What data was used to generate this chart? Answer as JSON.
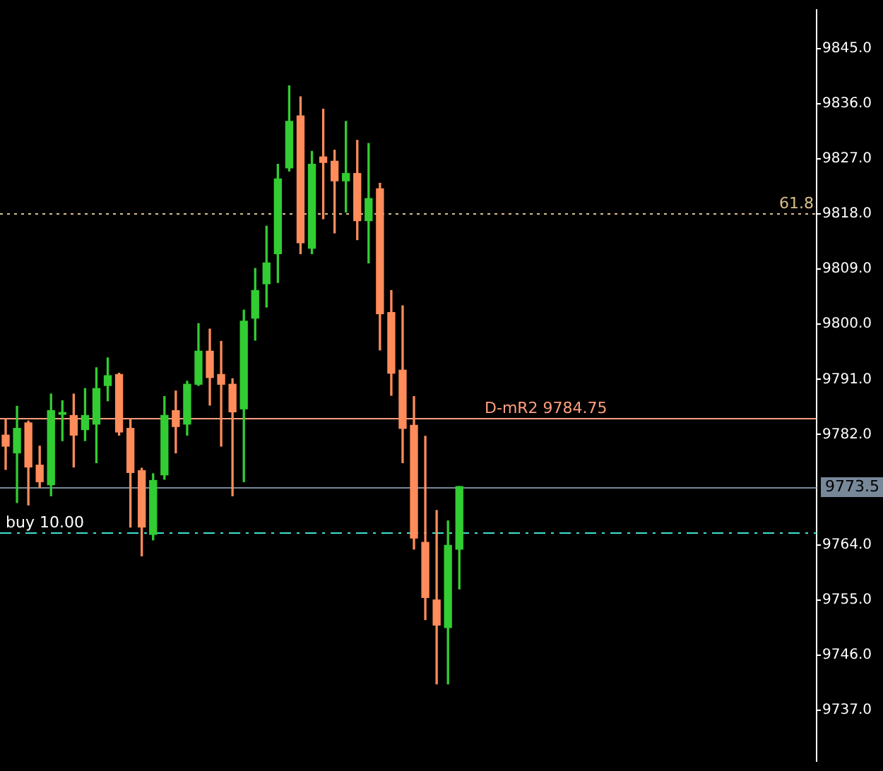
{
  "chart_data": {
    "type": "candlestick",
    "categories": [
      null,
      null,
      null,
      null,
      null,
      null,
      null,
      null,
      null,
      null,
      null,
      null,
      null,
      null,
      null,
      null,
      null,
      null,
      null,
      null,
      null,
      null,
      null,
      null,
      null,
      null,
      null,
      null,
      null,
      null,
      null,
      null,
      null,
      null,
      null,
      null,
      null,
      null,
      null,
      null,
      null,
      null,
      null,
      null,
      null,
      null,
      null,
      null,
      null,
      null,
      null,
      null,
      null,
      null,
      null,
      null,
      null,
      null,
      null,
      null,
      null,
      null,
      null,
      null,
      null,
      null,
      null,
      null,
      null,
      null,
      null,
      null
    ],
    "ohlc": [
      [
        9781.9,
        9784.6,
        9776.3,
        9780.1
      ],
      [
        9779.0,
        9786.6,
        9770.9,
        9783.0
      ],
      [
        9783.9,
        9784.2,
        9770.5,
        9776.7
      ],
      [
        9777.0,
        9780.1,
        9773.4,
        9774.3
      ],
      [
        9773.8,
        9788.6,
        9772.0,
        9785.9
      ],
      [
        9785.3,
        9787.5,
        9781.0,
        9785.6
      ],
      [
        9785.1,
        9788.6,
        9776.7,
        9781.9
      ],
      [
        9782.8,
        9789.5,
        9781.0,
        9785.1
      ],
      [
        9783.7,
        9792.9,
        9777.4,
        9789.5
      ],
      [
        9790.0,
        9794.5,
        9787.5,
        9791.6
      ],
      [
        9791.8,
        9792.0,
        9781.9,
        9782.4
      ],
      [
        9783.0,
        9784.6,
        9766.9,
        9775.8
      ],
      [
        9776.1,
        9776.5,
        9762.2,
        9766.9
      ],
      [
        9765.7,
        9775.6,
        9764.8,
        9774.5
      ],
      [
        9775.4,
        9788.2,
        9774.7,
        9785.1
      ],
      [
        9785.9,
        9789.1,
        9779.0,
        9783.3
      ],
      [
        9783.7,
        9790.7,
        9781.9,
        9790.2
      ],
      [
        9790.2,
        9800.1,
        9790.0,
        9795.6
      ],
      [
        9795.6,
        9799.2,
        9786.8,
        9791.3
      ],
      [
        9791.8,
        9797.2,
        9780.1,
        9790.2
      ],
      [
        9790.2,
        9791.1,
        9772.0,
        9785.7
      ],
      [
        9786.2,
        9802.3,
        9774.3,
        9800.5
      ],
      [
        9801.0,
        9809.1,
        9797.4,
        9805.5
      ],
      [
        9806.6,
        9816.0,
        9802.8,
        9810.0
      ],
      [
        9811.5,
        9826.1,
        9806.8,
        9823.7
      ],
      [
        9825.5,
        9838.9,
        9825.0,
        9833.1
      ],
      [
        9834.0,
        9837.1,
        9811.5,
        9813.3
      ],
      [
        9812.4,
        9828.2,
        9811.5,
        9826.1
      ],
      [
        9827.3,
        9835.1,
        9817.2,
        9826.4
      ],
      [
        9826.6,
        9828.4,
        9814.9,
        9823.4
      ],
      [
        9823.4,
        9833.1,
        9818.3,
        9824.6
      ],
      [
        9824.6,
        9830.0,
        9813.8,
        9816.9
      ],
      [
        9816.9,
        9829.5,
        9810.0,
        9820.5
      ],
      [
        9822.1,
        9823.0,
        9795.8,
        9801.7
      ],
      [
        9801.9,
        9805.5,
        9788.4,
        9792.0
      ],
      [
        9792.5,
        9803.0,
        9777.4,
        9783.0
      ],
      [
        9783.5,
        9788.2,
        9763.3,
        9765.1
      ],
      [
        9764.4,
        9781.7,
        9751.8,
        9755.4
      ],
      [
        9755.0,
        9769.6,
        9741.3,
        9750.9
      ],
      [
        9750.5,
        9767.9,
        9741.3,
        9763.9
      ],
      [
        9763.3,
        9773.5,
        9756.8,
        9773.5
      ],
      null,
      null,
      null,
      null,
      null,
      null,
      null,
      null,
      null,
      null,
      null,
      null,
      null,
      null,
      null,
      null,
      null,
      null,
      null,
      null,
      null,
      null,
      null,
      null,
      null,
      null,
      null,
      null,
      null,
      null,
      null
    ],
    "colors": [
      "#ff8c5a",
      "#32cd32",
      "#ff8c5a",
      "#ff8c5a",
      "#32cd32",
      "#32cd32",
      "#ff8c5a",
      "#32cd32",
      "#32cd32",
      "#32cd32",
      "#ff8c5a",
      "#ff8c5a",
      "#ff8c5a",
      "#32cd32",
      "#32cd32",
      "#ff8c5a",
      "#32cd32",
      "#32cd32",
      "#ff8c5a",
      "#ff8c5a",
      "#ff8c5a",
      "#32cd32",
      "#32cd32",
      "#32cd32",
      "#32cd32",
      "#32cd32",
      "#ff8c5a",
      "#32cd32",
      "#ff8c5a",
      "#ff8c5a",
      "#32cd32",
      "#ff8c5a",
      "#32cd32",
      "#ff8c5a",
      "#ff8c5a",
      "#ff8c5a",
      "#ff8c5a",
      "#ff8c5a",
      "#ff8c5a",
      "#32cd32",
      "#32cd32",
      null,
      null,
      null,
      null,
      null,
      null,
      null,
      null,
      null,
      null,
      null,
      null,
      null,
      null,
      null,
      null,
      null,
      null,
      null,
      null,
      null,
      null,
      null,
      null,
      null,
      null,
      null,
      null,
      null,
      null,
      null
    ],
    "annotations": [
      {
        "text": "61.8",
        "y": 9818
      }
    ],
    "ylim": [
      9728.7,
      9851.3
    ],
    "yticks": [
      {
        "value": 9737,
        "label": "9737.0"
      },
      {
        "value": 9746,
        "label": "9746.0"
      },
      {
        "value": 9755,
        "label": "9755.0"
      },
      {
        "value": 9764,
        "label": "9764.0"
      },
      {
        "value": 9782,
        "label": "9782.0"
      },
      {
        "value": 9791,
        "label": "9791.0"
      },
      {
        "value": 9800,
        "label": "9800.0"
      },
      {
        "value": 9809,
        "label": "9809.0"
      },
      {
        "value": 9818,
        "label": "9818.0"
      },
      {
        "value": 9827,
        "label": "9827.0"
      },
      {
        "value": 9836,
        "label": "9836.0"
      },
      {
        "value": 9845,
        "label": "9845.0"
      }
    ],
    "ref_lines": [
      {
        "axis": "y",
        "value": 9818,
        "color": "#d9c08c",
        "line_style": "dotted"
      },
      {
        "axis": "y",
        "value": 9784.75,
        "label": "D-mR2 9784.75",
        "color": "#ff9f7f",
        "line_style": "solid"
      },
      {
        "axis": "y",
        "value": 9773.5,
        "label": "9773.5",
        "color": "#778899",
        "line_style": "solid"
      },
      {
        "axis": "y",
        "value": 9766,
        "label": "buy 10.00",
        "color": "#40e0d0",
        "line_style": "dashed"
      }
    ],
    "tick_labels": "y",
    "grid": false,
    "legend": false
  }
}
